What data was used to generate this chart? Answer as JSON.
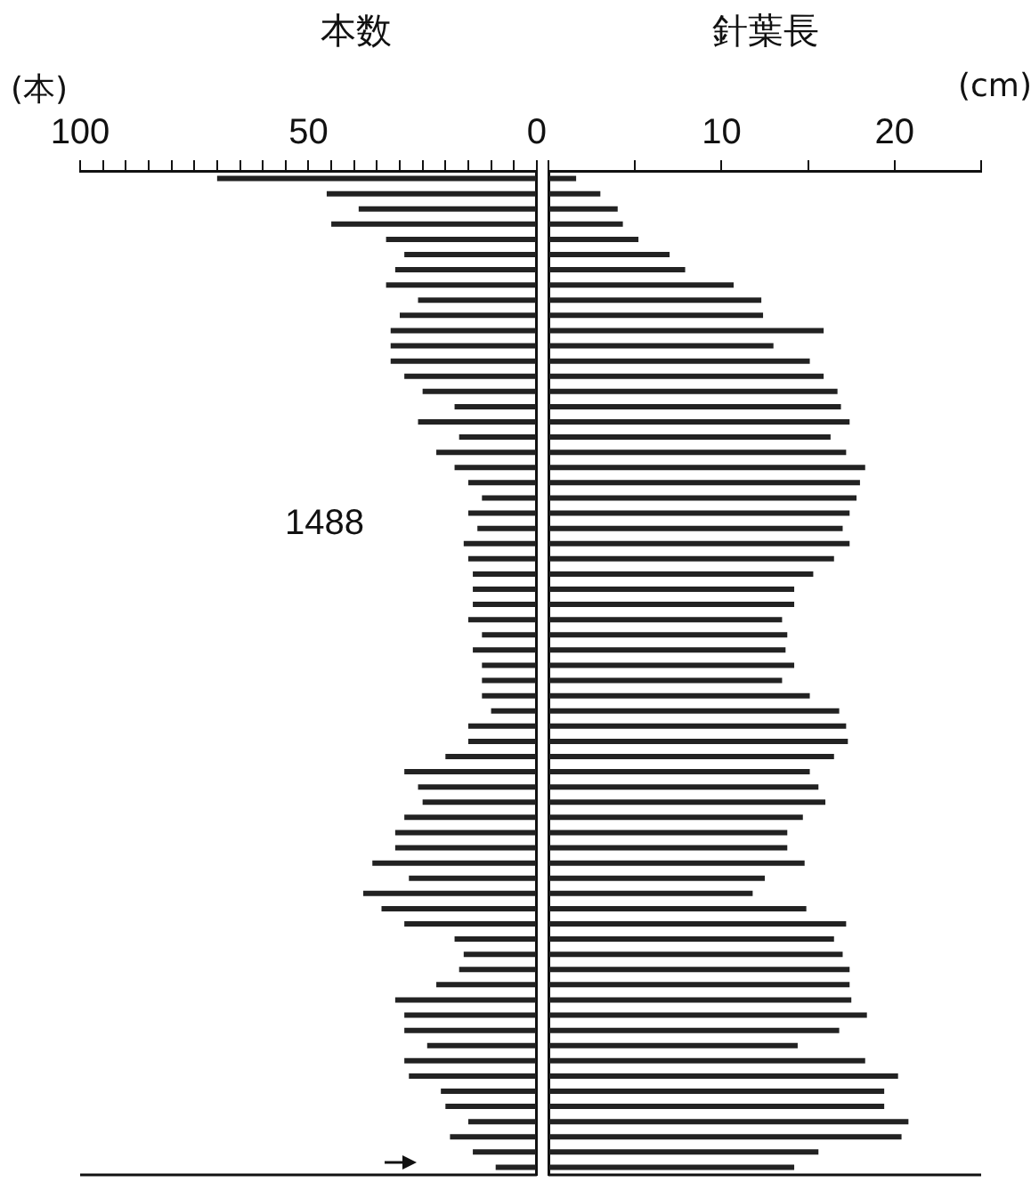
{
  "chart_data": [
    {
      "type": "bar",
      "orientation": "horizontal",
      "title": "本数",
      "xlabel": "(本)",
      "annotations": [
        "1488"
      ],
      "categories": [
        null,
        null,
        null,
        null,
        null,
        null,
        null,
        null,
        null,
        null,
        null,
        null,
        null,
        null,
        null,
        null,
        null,
        null,
        null,
        null,
        null,
        null,
        null,
        null,
        null,
        null,
        null,
        null,
        null,
        null,
        null,
        null,
        null,
        null,
        null,
        null,
        null,
        null,
        null,
        null,
        null,
        null,
        null,
        null,
        null,
        null,
        null,
        null,
        null,
        null,
        null,
        null,
        null,
        null,
        null,
        null,
        null,
        null,
        null,
        null,
        null,
        null,
        null,
        null,
        null,
        null
      ],
      "values": [
        70,
        46,
        39,
        45,
        33,
        29,
        31,
        33,
        26,
        30,
        32,
        32,
        32,
        29,
        25,
        18,
        26,
        17,
        22,
        18,
        15,
        12,
        15,
        13,
        16,
        15,
        14,
        14,
        14,
        15,
        12,
        14,
        12,
        12,
        12,
        10,
        15,
        15,
        20,
        29,
        26,
        25,
        29,
        31,
        31,
        36,
        28,
        38,
        34,
        29,
        18,
        16,
        17,
        22,
        31,
        29,
        29,
        24,
        29,
        28,
        21,
        20,
        15,
        19,
        14,
        9
      ],
      "color": "#222222",
      "xlim": [
        100,
        0
      ],
      "xticks": [
        100,
        {
          "value": 95,
          "label": null
        },
        {
          "value": 90,
          "label": null
        },
        {
          "value": 85,
          "label": null
        },
        {
          "value": 80,
          "label": null
        },
        {
          "value": 75,
          "label": null
        },
        {
          "value": 70,
          "label": null
        },
        {
          "value": 65,
          "label": null
        },
        {
          "value": 60,
          "label": null
        },
        {
          "value": 55,
          "label": null
        },
        50,
        {
          "value": 45,
          "label": null
        },
        {
          "value": 40,
          "label": null
        },
        {
          "value": 35,
          "label": null
        },
        {
          "value": 30,
          "label": null
        },
        {
          "value": 25,
          "label": null
        },
        {
          "value": 20,
          "label": null
        },
        {
          "value": 15,
          "label": null
        },
        {
          "value": 10,
          "label": null
        },
        {
          "value": 5,
          "label": null
        },
        0
      ],
      "grid": false,
      "legend": false
    },
    {
      "type": "bar",
      "orientation": "horizontal",
      "title": "針葉長",
      "xlabel": "(cm)",
      "categories": [
        null,
        null,
        null,
        null,
        null,
        null,
        null,
        null,
        null,
        null,
        null,
        null,
        null,
        null,
        null,
        null,
        null,
        null,
        null,
        null,
        null,
        null,
        null,
        null,
        null,
        null,
        null,
        null,
        null,
        null,
        null,
        null,
        null,
        null,
        null,
        null,
        null,
        null,
        null,
        null,
        null,
        null,
        null,
        null,
        null,
        null,
        null,
        null,
        null,
        null,
        null,
        null,
        null,
        null,
        null,
        null,
        null,
        null,
        null,
        null,
        null,
        null,
        null,
        null,
        null,
        null
      ],
      "values": [
        1.6,
        3.0,
        4.0,
        4.3,
        5.2,
        7.0,
        7.9,
        10.7,
        12.3,
        12.4,
        15.9,
        13.0,
        15.1,
        15.9,
        16.7,
        16.9,
        17.4,
        16.3,
        17.2,
        18.3,
        18.0,
        17.8,
        17.4,
        17.0,
        17.4,
        16.5,
        15.3,
        14.2,
        14.2,
        13.5,
        13.8,
        13.7,
        14.2,
        13.5,
        15.1,
        16.8,
        17.2,
        17.3,
        16.5,
        15.1,
        15.6,
        16.0,
        14.7,
        13.8,
        13.8,
        14.8,
        12.5,
        11.8,
        14.9,
        17.2,
        16.5,
        17.0,
        17.4,
        17.4,
        17.5,
        18.4,
        16.8,
        14.4,
        18.3,
        20.2,
        19.4,
        19.4,
        20.8,
        20.4,
        15.6,
        14.2
      ],
      "color": "#222222",
      "xlim": [
        0,
        25
      ],
      "xticks": [
        {
          "value": 0,
          "label": null
        },
        {
          "value": 5,
          "label": null
        },
        10,
        {
          "value": 15,
          "label": null
        },
        20,
        {
          "value": 25,
          "label": null
        }
      ],
      "grid": false,
      "legend": false
    }
  ]
}
